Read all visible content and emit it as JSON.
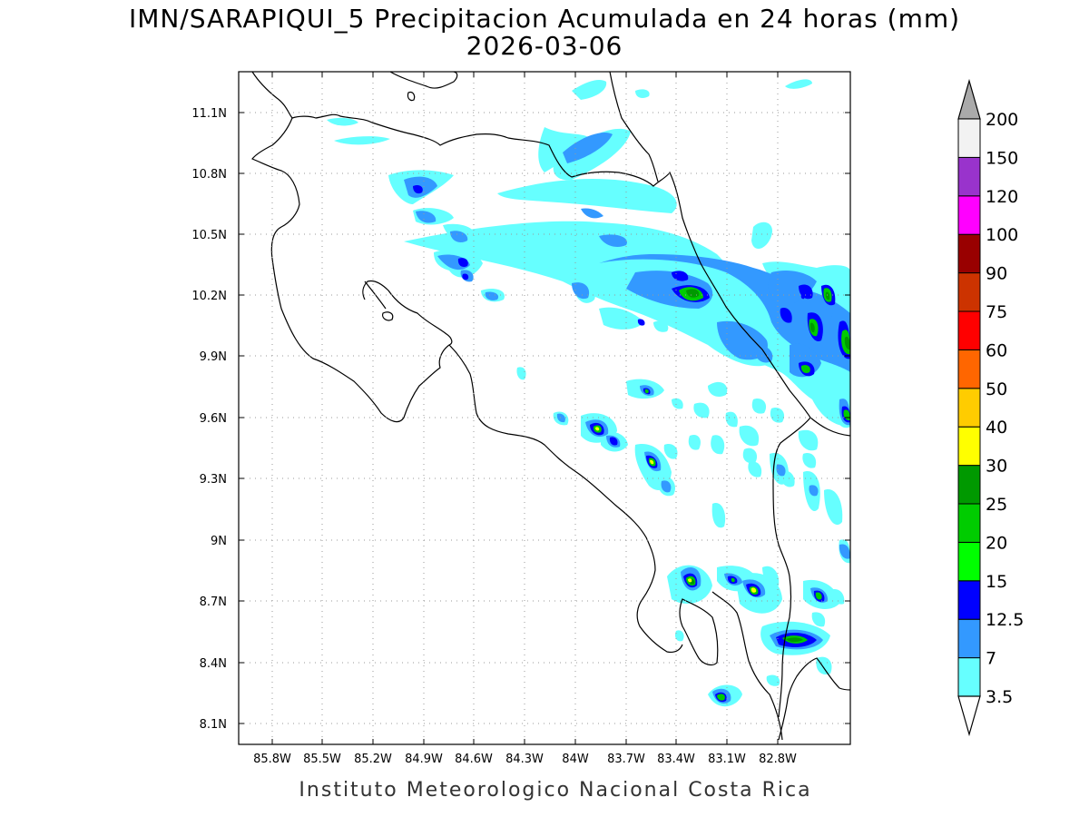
{
  "header": {
    "title": "IMN/SARAPIQUI_5 Precipitacion Acumulada en 24 horas (mm)",
    "date": "2026-03-06"
  },
  "footer": {
    "credit": "Instituto Meteorologico Nacional Costa Rica"
  },
  "map": {
    "lon_range": [
      -86.0,
      -82.5
    ],
    "lat_range": [
      8.0,
      11.3
    ],
    "lon_ticks": [
      "85.8W",
      "85.5W",
      "85.2W",
      "84.9W",
      "84.6W",
      "84.3W",
      "84W",
      "83.7W",
      "83.4W",
      "83.1W",
      "82.8W"
    ],
    "lat_ticks": [
      "8.1N",
      "8.4N",
      "8.7N",
      "9N",
      "9.3N",
      "9.6N",
      "9.9N",
      "10.2N",
      "10.5N",
      "10.8N",
      "11.1N"
    ],
    "grid": "dotted"
  },
  "legend": {
    "labels": [
      "3.5",
      "7",
      "12.5",
      "15",
      "20",
      "25",
      "30",
      "40",
      "50",
      "60",
      "75",
      "90",
      "100",
      "120",
      "150",
      "200"
    ],
    "colors": [
      "#66ffff",
      "#3399ff",
      "#0000ff",
      "#00ff00",
      "#00cc00",
      "#009900",
      "#ffff00",
      "#ffcc00",
      "#ff6600",
      "#ff0000",
      "#cc3300",
      "#990000",
      "#ff00ff",
      "#9933cc",
      "#f2f2f2"
    ],
    "arrow_top_color": "#aaaaaa",
    "arrow_bottom_color": "#ffffff"
  }
}
